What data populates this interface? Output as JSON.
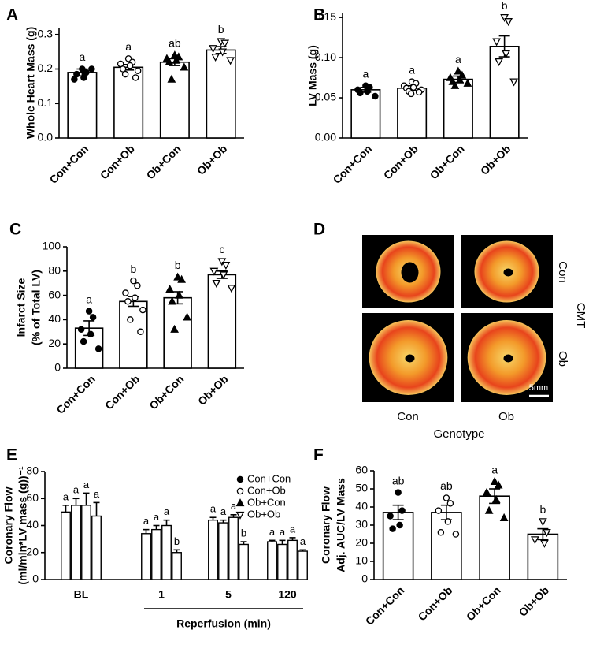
{
  "chart_data": [
    {
      "type": "bar",
      "panel": "A",
      "ylabel": [
        "Whole Heart Mass (g)"
      ],
      "categories": [
        "Con+Con",
        "Con+Ob",
        "Ob+Con",
        "Ob+Ob"
      ],
      "values": [
        0.19,
        0.205,
        0.22,
        0.255
      ],
      "errors": [
        0.01,
        0.008,
        0.01,
        0.01
      ],
      "letters": [
        "a",
        "a",
        "ab",
        "b"
      ],
      "points": [
        [
          0.2,
          0.19,
          0.17,
          0.175,
          0.185,
          0.2
        ],
        [
          0.23,
          0.22,
          0.215,
          0.21,
          0.2,
          0.195,
          0.185,
          0.175
        ],
        [
          0.24,
          0.235,
          0.23,
          0.225,
          0.22,
          0.205,
          0.17
        ],
        [
          0.28,
          0.275,
          0.26,
          0.25,
          0.235,
          0.225
        ]
      ],
      "ylim": [
        0,
        0.32
      ],
      "yticks": [
        {
          "value": 0,
          "label": "0.0"
        },
        0.1,
        0.2,
        0.3
      ]
    },
    {
      "type": "bar",
      "panel": "B",
      "ylabel": [
        "LV Mass (g)"
      ],
      "categories": [
        "Con+Con",
        "Con+Ob",
        "Ob+Con",
        "Ob+Ob"
      ],
      "values": [
        0.06,
        0.062,
        0.073,
        0.114
      ],
      "errors": [
        0.003,
        0.003,
        0.004,
        0.013
      ],
      "letters": [
        "a",
        "a",
        "a",
        "b"
      ],
      "points": [
        [
          0.065,
          0.063,
          0.06,
          0.058,
          0.056,
          0.052
        ],
        [
          0.07,
          0.068,
          0.065,
          0.063,
          0.062,
          0.06,
          0.058,
          0.057,
          0.055
        ],
        [
          0.083,
          0.078,
          0.075,
          0.072,
          0.07,
          0.068,
          0.065
        ],
        [
          0.15,
          0.145,
          0.12,
          0.105,
          0.095,
          0.07
        ]
      ],
      "ylim": [
        0,
        0.155
      ],
      "yticks": [
        {
          "value": 0,
          "label": "0.00"
        },
        0.05,
        {
          "value": 0.1,
          "label": "0.10"
        },
        0.15
      ]
    },
    {
      "type": "bar",
      "panel": "C",
      "ylabel": [
        "Infarct Size",
        "(% of Total LV)"
      ],
      "categories": [
        "Con+Con",
        "Con+Ob",
        "Ob+Con",
        "Ob+Ob"
      ],
      "values": [
        33,
        55,
        58,
        77
      ],
      "errors": [
        6,
        4,
        5,
        3
      ],
      "letters": [
        "a",
        "b",
        "b",
        "c"
      ],
      "points": [
        [
          47,
          42,
          32,
          28,
          22,
          16
        ],
        [
          72,
          68,
          62,
          58,
          55,
          48,
          40,
          30
        ],
        [
          75,
          73,
          65,
          60,
          55,
          42,
          32
        ],
        [
          88,
          85,
          80,
          77,
          70,
          66
        ]
      ],
      "ylim": [
        0,
        100
      ],
      "yticks": [
        0,
        20,
        40,
        60,
        80,
        100
      ]
    },
    {
      "type": "image-grid",
      "panel": "D",
      "row_labels": [
        "Con",
        "Ob"
      ],
      "row_title": "CMT",
      "col_labels": [
        "Con",
        "Ob"
      ],
      "xlabel": "Genotype",
      "scale_bar": "5mm"
    },
    {
      "type": "grouped-bar",
      "panel": "E",
      "ylabel": [
        "Coronary Flow",
        "(ml/min*LV mass (g))⁻¹"
      ],
      "xlabel": "Reperfusion (min)",
      "categories": [
        "BL",
        "1",
        "5",
        "120"
      ],
      "series": [
        {
          "name": "Con+Con",
          "values": [
            50,
            34,
            44,
            28
          ],
          "errors": [
            5,
            3,
            2,
            1
          ],
          "letters": [
            "a",
            "a",
            "a",
            "a"
          ]
        },
        {
          "name": "Con+Ob",
          "values": [
            55,
            37,
            42,
            26
          ],
          "errors": [
            5,
            3,
            2,
            3
          ],
          "letters": [
            "a",
            "a",
            "a",
            "a"
          ]
        },
        {
          "name": "Ob+Con",
          "values": [
            55,
            40,
            46,
            29
          ],
          "errors": [
            9,
            4,
            2,
            2
          ],
          "letters": [
            "a",
            "a",
            "a",
            "a"
          ]
        },
        {
          "name": "Ob+Ob",
          "values": [
            47,
            20,
            26,
            21
          ],
          "errors": [
            10,
            2,
            2,
            1
          ],
          "letters": [
            "a",
            "b",
            "b",
            "a"
          ]
        }
      ],
      "legend": "upper right",
      "ylim": [
        0,
        80
      ],
      "yticks": [
        0,
        20,
        40,
        60,
        80
      ]
    },
    {
      "type": "bar",
      "panel": "F",
      "ylabel": [
        "Coronary Flow",
        "Adj. AUC/LV Mass"
      ],
      "categories": [
        "Con+Con",
        "Con+Ob",
        "Ob+Con",
        "Ob+Ob"
      ],
      "values": [
        37,
        37,
        46,
        25
      ],
      "errors": [
        4,
        4,
        4,
        3
      ],
      "letters": [
        "ab",
        "ab",
        "a",
        "b"
      ],
      "points": [
        [
          48,
          38,
          35,
          30,
          28
        ],
        [
          45,
          42,
          38,
          32,
          26,
          25
        ],
        [
          54,
          52,
          48,
          44,
          38,
          34
        ],
        [
          32,
          26,
          22,
          20
        ]
      ],
      "ylim": [
        0,
        60
      ],
      "yticks": [
        0,
        10,
        20,
        30,
        40,
        50,
        60
      ]
    }
  ]
}
